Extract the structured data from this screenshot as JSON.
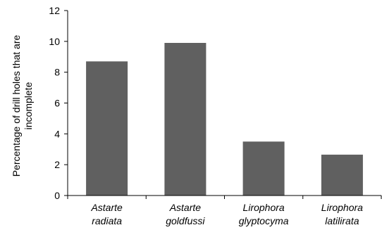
{
  "chart_data": {
    "type": "bar",
    "title": "",
    "xlabel": "",
    "ylabel": [
      "Percentage of drill holes that are",
      "incomplete"
    ],
    "categories": [
      [
        "Astarte",
        "radiata"
      ],
      [
        "Astarte",
        "goldfussi"
      ],
      [
        "Lirophora",
        "glyptocyma"
      ],
      [
        "Lirophora",
        "latilirata"
      ]
    ],
    "values": [
      8.7,
      9.9,
      3.5,
      2.65
    ],
    "ylim": [
      0,
      12
    ],
    "yticks": [
      "0",
      "2",
      "4",
      "6",
      "8",
      "10",
      "12"
    ],
    "grid": false,
    "legend": "none",
    "colors": {
      "bar": "#606060",
      "axis": "#000000"
    }
  }
}
